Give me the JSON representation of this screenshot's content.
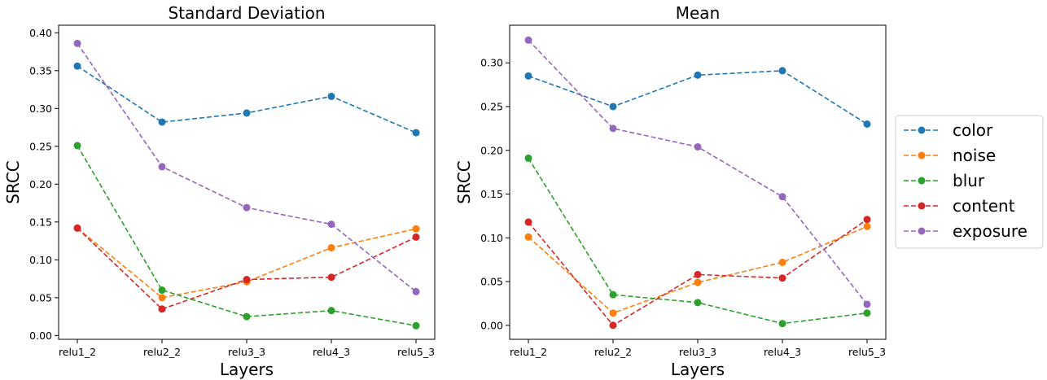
{
  "chart_data": [
    {
      "type": "line",
      "title": "Standard Deviation",
      "xlabel": "Layers",
      "ylabel": "SRCC",
      "categories": [
        "relu1_2",
        "relu2_2",
        "relu3_3",
        "relu4_3",
        "relu5_3"
      ],
      "ylim": [
        -0.005,
        0.41
      ],
      "yticks": [
        0.0,
        0.05,
        0.1,
        0.15,
        0.2,
        0.25,
        0.3,
        0.35,
        0.4
      ],
      "ytick_labels": [
        "0.00",
        "0.05",
        "0.10",
        "0.15",
        "0.20",
        "0.25",
        "0.30",
        "0.35",
        "0.40"
      ],
      "series": [
        {
          "name": "color",
          "values": [
            0.356,
            0.282,
            0.294,
            0.316,
            0.268
          ]
        },
        {
          "name": "noise",
          "values": [
            0.142,
            0.05,
            0.071,
            0.116,
            0.141
          ]
        },
        {
          "name": "blur",
          "values": [
            0.251,
            0.06,
            0.025,
            0.033,
            0.013
          ]
        },
        {
          "name": "content",
          "values": [
            0.142,
            0.035,
            0.074,
            0.077,
            0.13
          ]
        },
        {
          "name": "exposure",
          "values": [
            0.386,
            0.223,
            0.169,
            0.147,
            0.058
          ]
        }
      ]
    },
    {
      "type": "line",
      "title": "Mean",
      "xlabel": "Layers",
      "ylabel": "SRCC",
      "categories": [
        "relu1_2",
        "relu2_2",
        "relu3_3",
        "relu4_3",
        "relu5_3"
      ],
      "ylim": [
        -0.016,
        0.343
      ],
      "yticks": [
        0.0,
        0.05,
        0.1,
        0.15,
        0.2,
        0.25,
        0.3
      ],
      "ytick_labels": [
        "0.00",
        "0.05",
        "0.10",
        "0.15",
        "0.20",
        "0.25",
        "0.30"
      ],
      "series": [
        {
          "name": "color",
          "values": [
            0.285,
            0.25,
            0.286,
            0.291,
            0.23
          ]
        },
        {
          "name": "noise",
          "values": [
            0.101,
            0.014,
            0.049,
            0.072,
            0.113
          ]
        },
        {
          "name": "blur",
          "values": [
            0.191,
            0.035,
            0.026,
            0.002,
            0.014
          ]
        },
        {
          "name": "content",
          "values": [
            0.118,
            0.0,
            0.058,
            0.054,
            0.121
          ]
        },
        {
          "name": "exposure",
          "values": [
            0.326,
            0.225,
            0.204,
            0.147,
            0.024
          ]
        }
      ]
    }
  ],
  "legend": {
    "position": "right",
    "entries": [
      "color",
      "noise",
      "blur",
      "content",
      "exposure"
    ]
  },
  "colors": {
    "color": "#1f77b4",
    "noise": "#ff7f0e",
    "blur": "#2ca02c",
    "content": "#d62728",
    "exposure": "#9467bd"
  }
}
